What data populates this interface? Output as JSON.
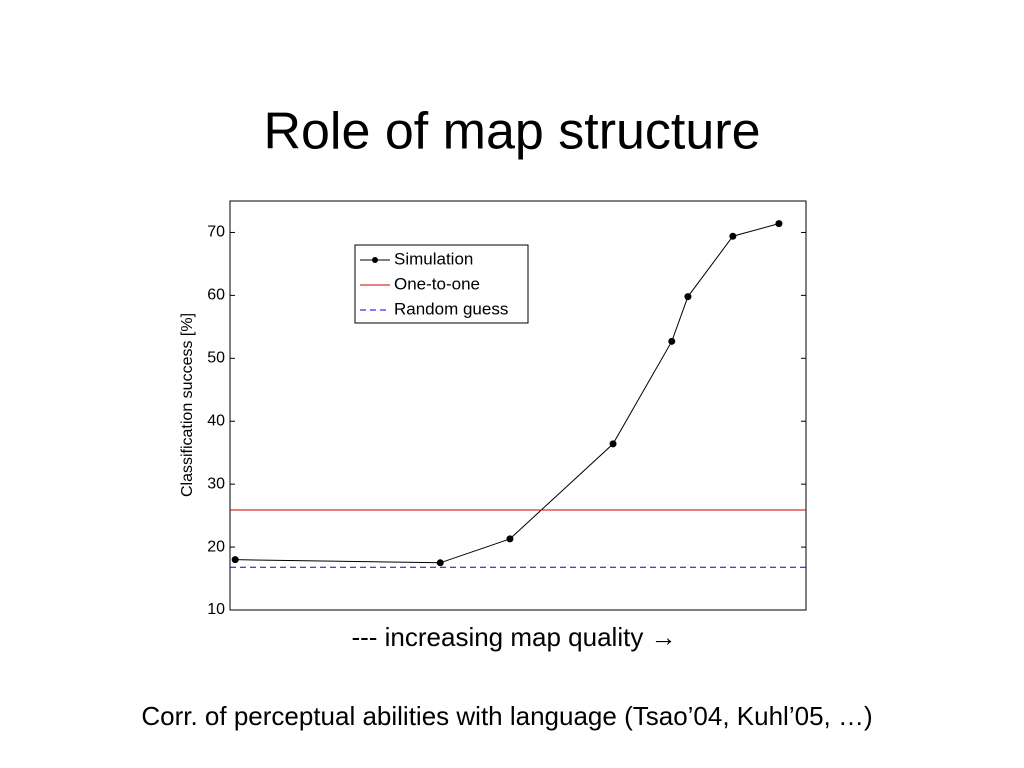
{
  "chart_data": {
    "type": "line",
    "title": "Role of map structure",
    "y_label": "Classification success [%]",
    "x_label": "--- increasing map quality →",
    "caption": "Corr. of perceptual abilities with language (Tsao’04, Kuhl’05, …)",
    "xlim": [
      0,
      100
    ],
    "ylim": [
      10,
      75
    ],
    "yticks": [
      10,
      20,
      30,
      40,
      50,
      60,
      70
    ],
    "legend": "upper-left",
    "series": [
      {
        "name": "Simulation",
        "color": "#000000",
        "marker": true,
        "dash": false,
        "x": [
          0.9,
          36.5,
          48.6,
          66.5,
          76.7,
          79.5,
          87.3,
          95.3
        ],
        "values": [
          18.0,
          17.5,
          21.3,
          36.4,
          52.7,
          59.8,
          69.4,
          71.4
        ]
      },
      {
        "name": "One-to-one",
        "color": "#cc0000",
        "marker": false,
        "dash": false,
        "y": 25.9
      },
      {
        "name": "Random guess",
        "color": "#0000ee",
        "marker": false,
        "dash": true,
        "y": 16.8
      }
    ]
  }
}
